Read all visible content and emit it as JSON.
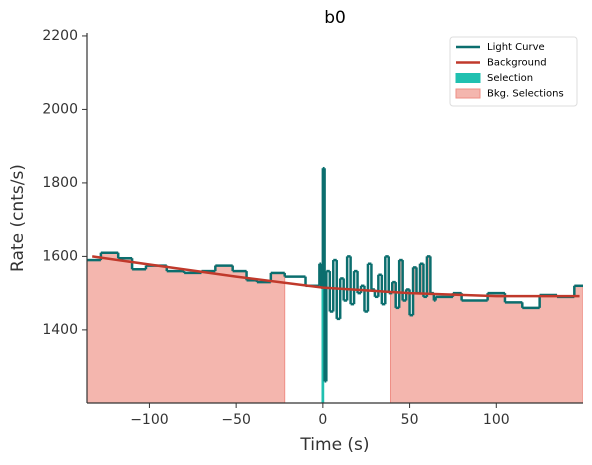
{
  "chart_data": {
    "type": "light_curve",
    "title": "b0",
    "x_label": "Time (s)",
    "y_label": "Rate (cnts/s)",
    "xlim": [
      -136,
      150
    ],
    "ylim": [
      1201,
      2208
    ],
    "xticks": [
      {
        "value": -100,
        "label": "−100"
      },
      {
        "value": -50,
        "label": "−50"
      },
      0,
      50,
      100
    ],
    "yticks": [
      1400,
      1600,
      1800,
      2000,
      2200
    ],
    "series": [
      {
        "name": "Light Curve",
        "color": "#0b6e6e",
        "step": true,
        "x": [
          -136,
          -128,
          -118,
          -110,
          -102,
          -90,
          -80,
          -70,
          -62,
          -52,
          -44,
          -38,
          -30,
          -22,
          -10,
          -2,
          -1,
          0,
          1,
          2,
          4,
          6,
          8,
          10,
          12,
          14,
          16,
          18,
          20,
          22,
          24,
          26,
          28,
          30,
          32,
          34,
          36,
          38,
          40,
          42,
          44,
          46,
          48,
          50,
          52,
          54,
          56,
          58,
          60,
          62,
          64,
          65,
          75,
          80,
          95,
          105,
          115,
          125,
          135,
          145
        ],
        "values": [
          1590,
          1610,
          1595,
          1565,
          1575,
          1560,
          1555,
          1560,
          1575,
          1560,
          1535,
          1530,
          1555,
          1545,
          1520,
          1580,
          1515,
          1840,
          1260,
          1560,
          1450,
          1590,
          1430,
          1540,
          1480,
          1600,
          1470,
          1560,
          1500,
          1520,
          1450,
          1580,
          1510,
          1490,
          1550,
          1470,
          1600,
          1500,
          1530,
          1460,
          1590,
          1480,
          1510,
          1440,
          1570,
          1500,
          1580,
          1490,
          1600,
          1500,
          1480,
          1490,
          1500,
          1480,
          1500,
          1475,
          1460,
          1495,
          1490,
          1520
        ]
      },
      {
        "name": "Background",
        "color": "#c0392b",
        "x": [
          -133,
          -100,
          -50,
          0,
          50,
          100,
          148
        ],
        "values": [
          1600,
          1578,
          1545,
          1515,
          1500,
          1492,
          1492
        ]
      }
    ],
    "regions": [
      {
        "name": "Selection",
        "color": "#20c0b0",
        "ranges": [
          [
            -0.5,
            0.5
          ]
        ]
      },
      {
        "name": "Bkg. Selections",
        "color": "#f4b6ae",
        "ranges": [
          [
            -136,
            -22
          ],
          [
            39,
            150
          ]
        ]
      }
    ]
  }
}
